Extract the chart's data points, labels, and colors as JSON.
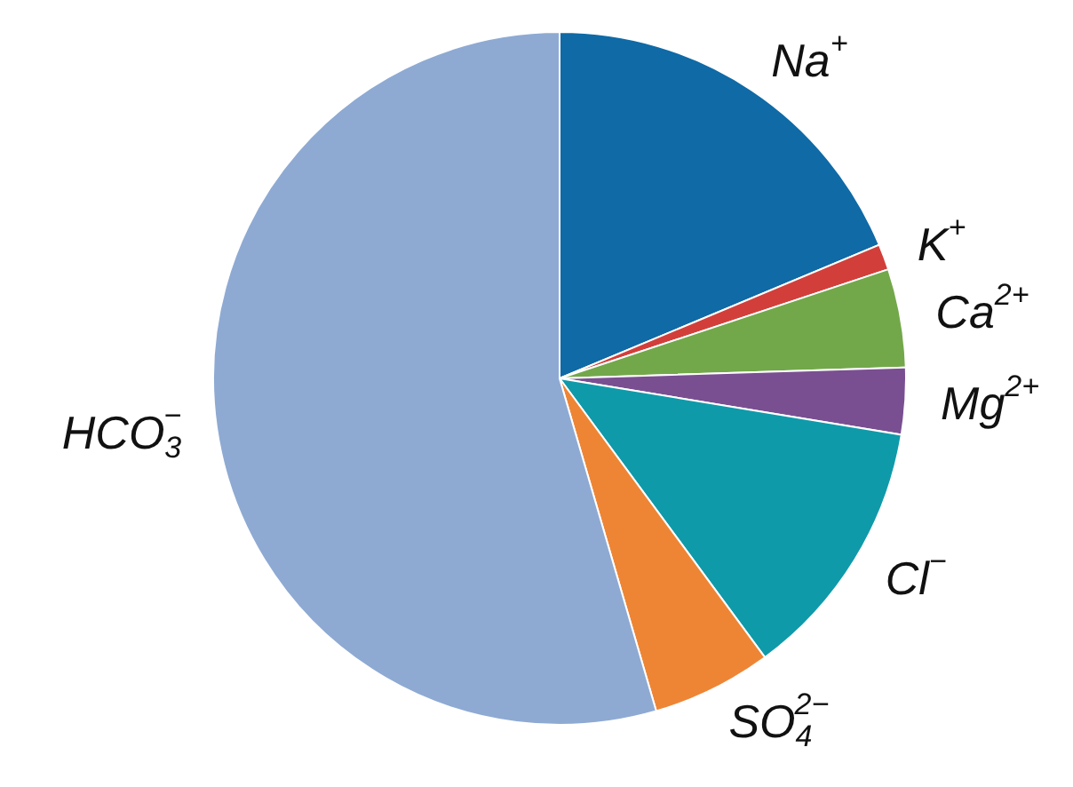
{
  "chart_data": {
    "type": "pie",
    "categories": [
      "Na$^{+}$",
      "K$^{+}$",
      "Ca$^{2+}$",
      "Mg$^{2+}$",
      "Cl$^{−}$",
      "SO$_{4}$$^{2−}$",
      "HCO$_{3}$$^{−}$"
    ],
    "values": [
      18.7,
      1.2,
      4.6,
      3.1,
      12.3,
      5.6,
      54.5
    ],
    "colors": [
      "#0f6aa6",
      "#d23f3a",
      "#72a84a",
      "#7a4f91",
      "#0f9aaa",
      "#ee8535",
      "#8eaad3"
    ],
    "legend": false
  }
}
